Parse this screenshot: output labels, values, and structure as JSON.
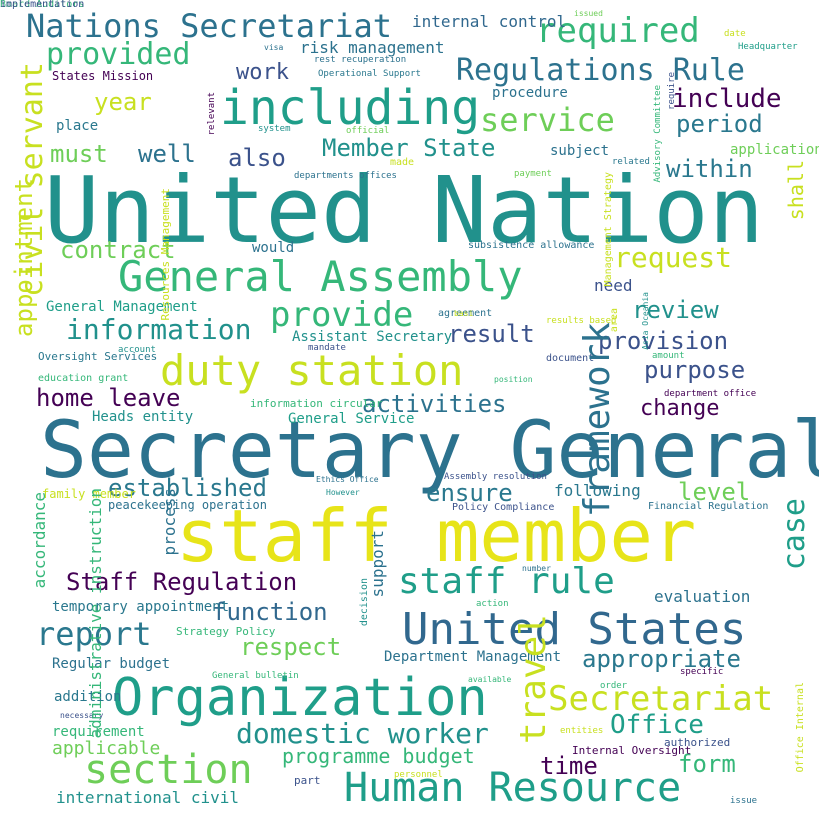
{
  "cloud": {
    "words": [
      {
        "text": "United Nation",
        "color": "#21918c"
      },
      {
        "text": "Secretary General",
        "color": "#2c728e"
      },
      {
        "text": "staff member",
        "color": "#e7e419"
      },
      {
        "text": "Organization",
        "color": "#1f9e89"
      },
      {
        "text": "General Assembly",
        "color": "#35b779"
      },
      {
        "text": "including",
        "color": "#1f9e89"
      },
      {
        "text": "duty station",
        "color": "#c8e020"
      },
      {
        "text": "United States",
        "color": "#31688e"
      },
      {
        "text": "section",
        "color": "#6ece58"
      },
      {
        "text": "Human Resource",
        "color": "#1f9e89"
      },
      {
        "text": "Nations Secretariat",
        "color": "#2c728e"
      },
      {
        "text": "Regulations Rule",
        "color": "#2c728e"
      },
      {
        "text": "provided",
        "color": "#35b779"
      },
      {
        "text": "required",
        "color": "#35b779"
      },
      {
        "text": "staff rule",
        "color": "#1f9e89"
      },
      {
        "text": "Secretariat",
        "color": "#c8e020"
      },
      {
        "text": "provide",
        "color": "#35b779"
      },
      {
        "text": "report",
        "color": "#2a788e"
      },
      {
        "text": "appropriate",
        "color": "#2a788e"
      },
      {
        "text": "Staff Regulation",
        "color": "#440154"
      },
      {
        "text": "domestic worker",
        "color": "#21918c"
      },
      {
        "text": "service",
        "color": "#6ece58"
      },
      {
        "text": "Member State",
        "color": "#21918c"
      },
      {
        "text": "information",
        "color": "#21918c"
      },
      {
        "text": "home leave",
        "color": "#440154"
      },
      {
        "text": "activities",
        "color": "#2c728e"
      },
      {
        "text": "established",
        "color": "#2a788e"
      },
      {
        "text": "function",
        "color": "#31688e"
      },
      {
        "text": "Office",
        "color": "#1f9e89"
      },
      {
        "text": "request",
        "color": "#c8e020"
      },
      {
        "text": "review",
        "color": "#21918c"
      },
      {
        "text": "provision",
        "color": "#3b528b"
      },
      {
        "text": "purpose",
        "color": "#3b528b"
      },
      {
        "text": "include",
        "color": "#440154"
      },
      {
        "text": "period",
        "color": "#2a788e"
      },
      {
        "text": "result",
        "color": "#3b528b"
      },
      {
        "text": "contract",
        "color": "#6ece58"
      },
      {
        "text": "respect",
        "color": "#6ece58"
      },
      {
        "text": "ensure",
        "color": "#2a788e"
      },
      {
        "text": "within",
        "color": "#2a788e"
      },
      {
        "text": "change",
        "color": "#440154"
      },
      {
        "text": "level",
        "color": "#6ece58"
      },
      {
        "text": "form",
        "color": "#35b779"
      },
      {
        "text": "time",
        "color": "#440154"
      },
      {
        "text": "programme budget",
        "color": "#35b779"
      },
      {
        "text": "work",
        "color": "#3b528b"
      },
      {
        "text": "also",
        "color": "#3b528b"
      },
      {
        "text": "well",
        "color": "#2c728e"
      },
      {
        "text": "must",
        "color": "#6ece58"
      },
      {
        "text": "year",
        "color": "#c8e020"
      },
      {
        "text": "applicable",
        "color": "#6ece58"
      },
      {
        "text": "international civil",
        "color": "#21918c"
      },
      {
        "text": "evaluation",
        "color": "#2c728e"
      },
      {
        "text": "following",
        "color": "#2a788e"
      },
      {
        "text": "need",
        "color": "#3b528b"
      },
      {
        "text": "risk management",
        "color": "#2c728e"
      },
      {
        "text": "internal control",
        "color": "#31688e"
      },
      {
        "text": "procedure",
        "color": "#2c728e"
      },
      {
        "text": "subject",
        "color": "#2c728e"
      },
      {
        "text": "application",
        "color": "#6ece58"
      },
      {
        "text": "would",
        "color": "#2c728e"
      },
      {
        "text": "General Management",
        "color": "#1f9e89"
      },
      {
        "text": "Assistant Secretary",
        "color": "#21918c"
      },
      {
        "text": "Heads entity",
        "color": "#21918c"
      },
      {
        "text": "General Service",
        "color": "#1f9e89"
      },
      {
        "text": "temporary appointment",
        "color": "#2a788e"
      },
      {
        "text": "Regular budget",
        "color": "#2c728e"
      },
      {
        "text": "Department Management",
        "color": "#2c728e"
      },
      {
        "text": "requirement",
        "color": "#35b779"
      },
      {
        "text": "addition",
        "color": "#2a788e"
      },
      {
        "text": "place",
        "color": "#2a788e"
      },
      {
        "text": "States Mission",
        "color": "#440154"
      },
      {
        "text": "peacekeeping operation",
        "color": "#2c728e"
      },
      {
        "text": "Strategy Policy",
        "color": "#35b779"
      },
      {
        "text": "Internal Oversight",
        "color": "#440154"
      },
      {
        "text": "authorized",
        "color": "#3b528b"
      },
      {
        "text": "Policy Compliance",
        "color": "#3b528b"
      },
      {
        "text": "Financial Regulation",
        "color": "#2c728e"
      },
      {
        "text": "Oversight Services",
        "color": "#2a788e"
      },
      {
        "text": "education grant",
        "color": "#35b779"
      },
      {
        "text": "information circular",
        "color": "#35b779"
      },
      {
        "text": "family member",
        "color": "#c8e020"
      },
      {
        "text": "made",
        "color": "#c8e020"
      },
      {
        "text": "subsistence allowance",
        "color": "#2c728e"
      },
      {
        "text": "rest recuperation",
        "color": "#2c728e"
      },
      {
        "text": "Operational Support",
        "color": "#2a788e"
      },
      {
        "text": "departments offices",
        "color": "#2c728e"
      },
      {
        "text": "payment",
        "color": "#6ece58"
      },
      {
        "text": "related",
        "color": "#2a788e"
      },
      {
        "text": "system",
        "color": "#21918c"
      },
      {
        "text": "official",
        "color": "#6ece58"
      },
      {
        "text": "visa",
        "color": "#2c728e"
      },
      {
        "text": "issued",
        "color": "#6ece58"
      },
      {
        "text": "date",
        "color": "#c8e020"
      },
      {
        "text": "Headquarter",
        "color": "#1f9e89"
      },
      {
        "text": "agreement",
        "color": "#2c728e"
      },
      {
        "text": "basi",
        "color": "#c8e020"
      },
      {
        "text": "results based",
        "color": "#c8e020"
      },
      {
        "text": "account",
        "color": "#21918c"
      },
      {
        "text": "mandate",
        "color": "#3b528b"
      },
      {
        "text": "document",
        "color": "#3b528b"
      },
      {
        "text": "position",
        "color": "#35b779"
      },
      {
        "text": "amount",
        "color": "#35b779"
      },
      {
        "text": "department office",
        "color": "#440154"
      },
      {
        "text": "Assembly resolution",
        "color": "#3b528b"
      },
      {
        "text": "Ethics Office",
        "color": "#2c728e"
      },
      {
        "text": "However",
        "color": "#21918c"
      },
      {
        "text": "number",
        "color": "#2c728e"
      },
      {
        "text": "action",
        "color": "#35b779"
      },
      {
        "text": "General bulletin",
        "color": "#35b779"
      },
      {
        "text": "available",
        "color": "#35b779"
      },
      {
        "text": "order",
        "color": "#35b779"
      },
      {
        "text": "specific",
        "color": "#440154"
      },
      {
        "text": "necessary",
        "color": "#3b528b"
      },
      {
        "text": "entities",
        "color": "#c8e020"
      },
      {
        "text": "part",
        "color": "#3b528b"
      },
      {
        "text": "personnel",
        "color": "#c8e020"
      },
      {
        "text": "issue",
        "color": "#2c728e"
      },
      {
        "text": "civil servant",
        "color": "#c8e020"
      },
      {
        "text": "appointment",
        "color": "#c8e020"
      },
      {
        "text": "accordance",
        "color": "#35b779"
      },
      {
        "text": "administrative instruction",
        "color": "#35b779"
      },
      {
        "text": "process",
        "color": "#2c728e"
      },
      {
        "text": "support",
        "color": "#2c728e"
      },
      {
        "text": "decision",
        "color": "#21918c"
      },
      {
        "text": "travel",
        "color": "#c8e020"
      },
      {
        "text": "framework",
        "color": "#2c728e"
      },
      {
        "text": "case",
        "color": "#1f9e89"
      },
      {
        "text": "shall",
        "color": "#c8e020"
      },
      {
        "text": "relevant",
        "color": "#440154"
      },
      {
        "text": "Resources Management",
        "color": "#c8e020"
      },
      {
        "text": "Management Strategy",
        "color": "#c8e020"
      },
      {
        "text": "area",
        "color": "#c8e020"
      },
      {
        "text": "Asia Oceania",
        "color": "#21918c"
      },
      {
        "text": "Advisory Committee",
        "color": "#35b779"
      },
      {
        "text": "require",
        "color": "#3b528b"
      },
      {
        "text": "Office Internal",
        "color": "#c8e020"
      },
      {
        "text": "Board Auditors",
        "color": "#35b779"
      },
      {
        "text": "implementation",
        "color": "#3b528b"
      }
    ]
  }
}
